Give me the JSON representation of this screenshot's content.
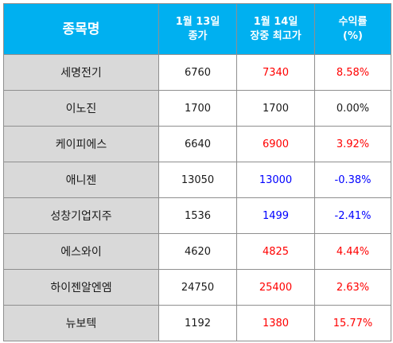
{
  "colors": {
    "header_bg": "#00b0f0",
    "header_text": "#ffffff",
    "name_cell_bg": "#d9d9d9",
    "up": "#ff0000",
    "down": "#0000ff",
    "flat": "#1a1a1a"
  },
  "header": {
    "name": "종목명",
    "close": [
      "1월 13일",
      "종가"
    ],
    "high": [
      "1월 14일",
      "장중 최고가"
    ],
    "return": [
      "수익률",
      "(%)"
    ]
  },
  "rows": [
    {
      "name": "세명전기",
      "close": "6760",
      "high": "7340",
      "return": "8.58%",
      "trend": "up"
    },
    {
      "name": "이노진",
      "close": "1700",
      "high": "1700",
      "return": "0.00%",
      "trend": "flat"
    },
    {
      "name": "케이피에스",
      "close": "6640",
      "high": "6900",
      "return": "3.92%",
      "trend": "up"
    },
    {
      "name": "애니젠",
      "close": "13050",
      "high": "13000",
      "return": "-0.38%",
      "trend": "down"
    },
    {
      "name": "성창기업지주",
      "close": "1536",
      "high": "1499",
      "return": "-2.41%",
      "trend": "down"
    },
    {
      "name": "에스와이",
      "close": "4620",
      "high": "4825",
      "return": "4.44%",
      "trend": "up"
    },
    {
      "name": "하이젠알엔엠",
      "close": "24750",
      "high": "25400",
      "return": "2.63%",
      "trend": "up"
    },
    {
      "name": "뉴보텍",
      "close": "1192",
      "high": "1380",
      "return": "15.77%",
      "trend": "up"
    }
  ]
}
